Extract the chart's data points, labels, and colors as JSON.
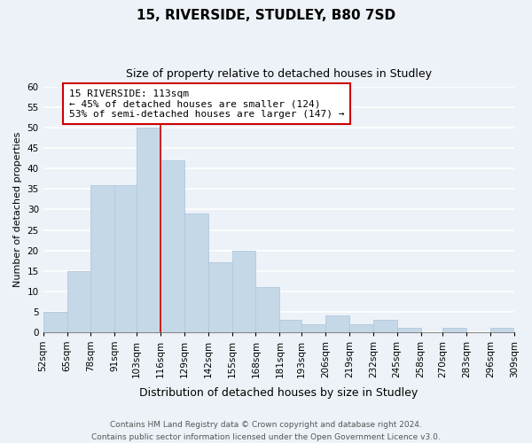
{
  "title": "15, RIVERSIDE, STUDLEY, B80 7SD",
  "subtitle": "Size of property relative to detached houses in Studley",
  "xlabel": "Distribution of detached houses by size in Studley",
  "ylabel": "Number of detached properties",
  "bins": [
    52,
    65,
    78,
    91,
    103,
    116,
    129,
    142,
    155,
    168,
    181,
    193,
    206,
    219,
    232,
    245,
    258,
    270,
    283,
    296,
    309
  ],
  "counts": [
    5,
    15,
    36,
    36,
    50,
    42,
    29,
    17,
    20,
    11,
    3,
    2,
    4,
    2,
    3,
    1,
    0,
    1,
    0,
    1
  ],
  "bar_color": "#c5d8e8",
  "bar_edge_color": "#b0c8dc",
  "property_line_x": 116,
  "property_line_color": "#cc0000",
  "annotation_text": "15 RIVERSIDE: 113sqm\n← 45% of detached houses are smaller (124)\n53% of semi-detached houses are larger (147) →",
  "annotation_box_color": "#ffffff",
  "annotation_box_edge_color": "#cc0000",
  "ylim": [
    0,
    60
  ],
  "yticks": [
    0,
    5,
    10,
    15,
    20,
    25,
    30,
    35,
    40,
    45,
    50,
    55,
    60
  ],
  "footer_line1": "Contains HM Land Registry data © Crown copyright and database right 2024.",
  "footer_line2": "Contains public sector information licensed under the Open Government Licence v3.0.",
  "background_color": "#edf2f8",
  "grid_color": "#ffffff",
  "title_fontsize": 11,
  "subtitle_fontsize": 9,
  "xlabel_fontsize": 9,
  "ylabel_fontsize": 8,
  "tick_fontsize": 7.5,
  "annotation_fontsize": 8,
  "footer_fontsize": 6.5
}
